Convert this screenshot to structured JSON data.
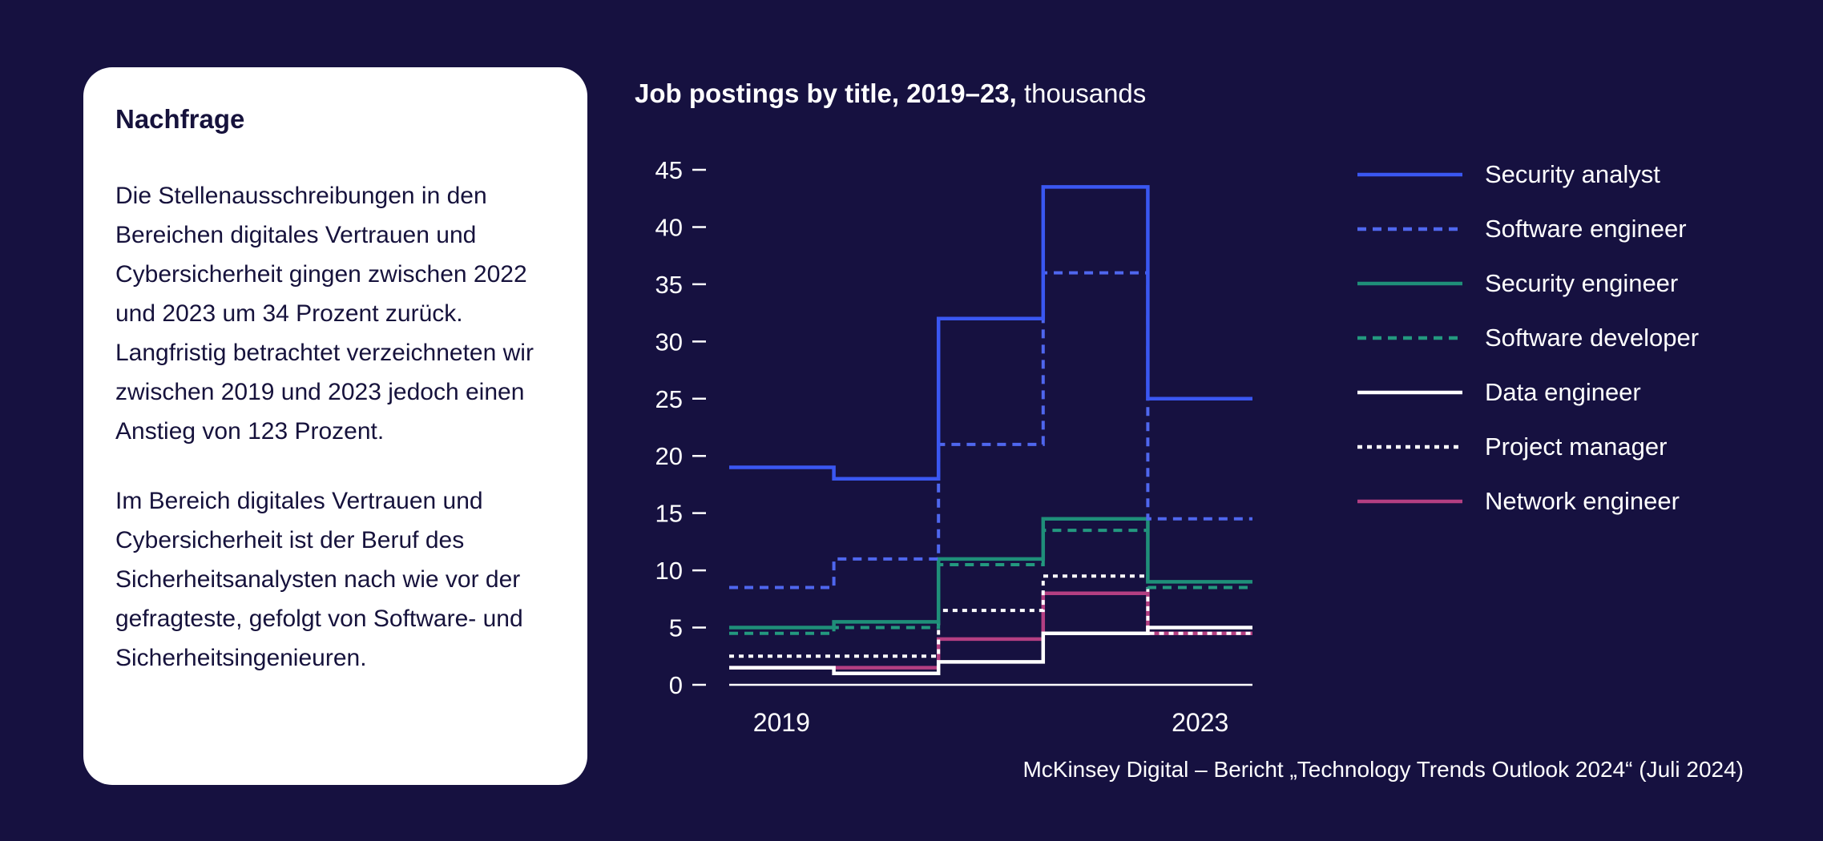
{
  "theme": {
    "background": "#161140",
    "card_bg": "#ffffff",
    "card_text": "#16123c",
    "chart_text": "#ffffff",
    "accent_blue": "#3a57f2",
    "accent_teal": "#1f8f79",
    "accent_magenta": "#b43f82"
  },
  "card": {
    "title": "Nachfrage",
    "paragraphs": [
      "Die Stellenausschreibungen in den Bereichen digitales Vertrauen und Cybersicherheit gingen zwischen 2022 und 2023 um 34 Prozent zurück. Langfristig betrachtet verzeichneten wir zwischen 2019 und 2023 jedoch einen Anstieg von 123 Prozent.",
      "Im Bereich digitales Vertrauen und Cybersicherheit ist der Beruf des Sicherheitsanalysten nach wie vor der gefragteste, gefolgt von Software- und Sicherheitsingenieuren."
    ]
  },
  "chart": {
    "title_bold": "Job postings by title, 2019–23,",
    "title_rest": " thousands"
  },
  "source": "McKinsey Digital – Bericht „Technology Trends Outlook 2024“ (Juli 2024)",
  "chart_data": {
    "type": "line",
    "subtype": "step",
    "title": "Job postings by title, 2019–23, thousands",
    "x": [
      2019,
      2020,
      2021,
      2022,
      2023
    ],
    "x_tick_labels_shown": [
      "2019",
      "2023"
    ],
    "ylim": [
      0,
      45
    ],
    "y_ticks": [
      0,
      5,
      10,
      15,
      20,
      25,
      30,
      35,
      40,
      45
    ],
    "grid": false,
    "legend_position": "right",
    "series": [
      {
        "name": "Security analyst",
        "color": "#3a57f2",
        "style": "solid",
        "values": [
          19,
          18,
          32,
          43.5,
          25
        ]
      },
      {
        "name": "Software engineer",
        "color": "#4f67ee",
        "style": "dashed",
        "values": [
          8.5,
          11,
          21,
          36,
          14.5
        ]
      },
      {
        "name": "Security engineer",
        "color": "#1f8f79",
        "style": "solid",
        "values": [
          5,
          5.5,
          11,
          14.5,
          9
        ]
      },
      {
        "name": "Software developer",
        "color": "#23997f",
        "style": "dashed",
        "values": [
          4.5,
          5,
          10.5,
          13.5,
          8.5
        ]
      },
      {
        "name": "Data engineer",
        "color": "#ffffff",
        "style": "solid",
        "values": [
          1.5,
          1,
          2,
          4.5,
          5
        ]
      },
      {
        "name": "Project manager",
        "color": "#ffffff",
        "style": "dotted",
        "values": [
          2.5,
          2.5,
          6.5,
          9.5,
          4.5
        ]
      },
      {
        "name": "Network engineer",
        "color": "#b43f82",
        "style": "solid",
        "values": [
          1.5,
          1.5,
          4,
          8,
          4.5
        ]
      }
    ]
  }
}
